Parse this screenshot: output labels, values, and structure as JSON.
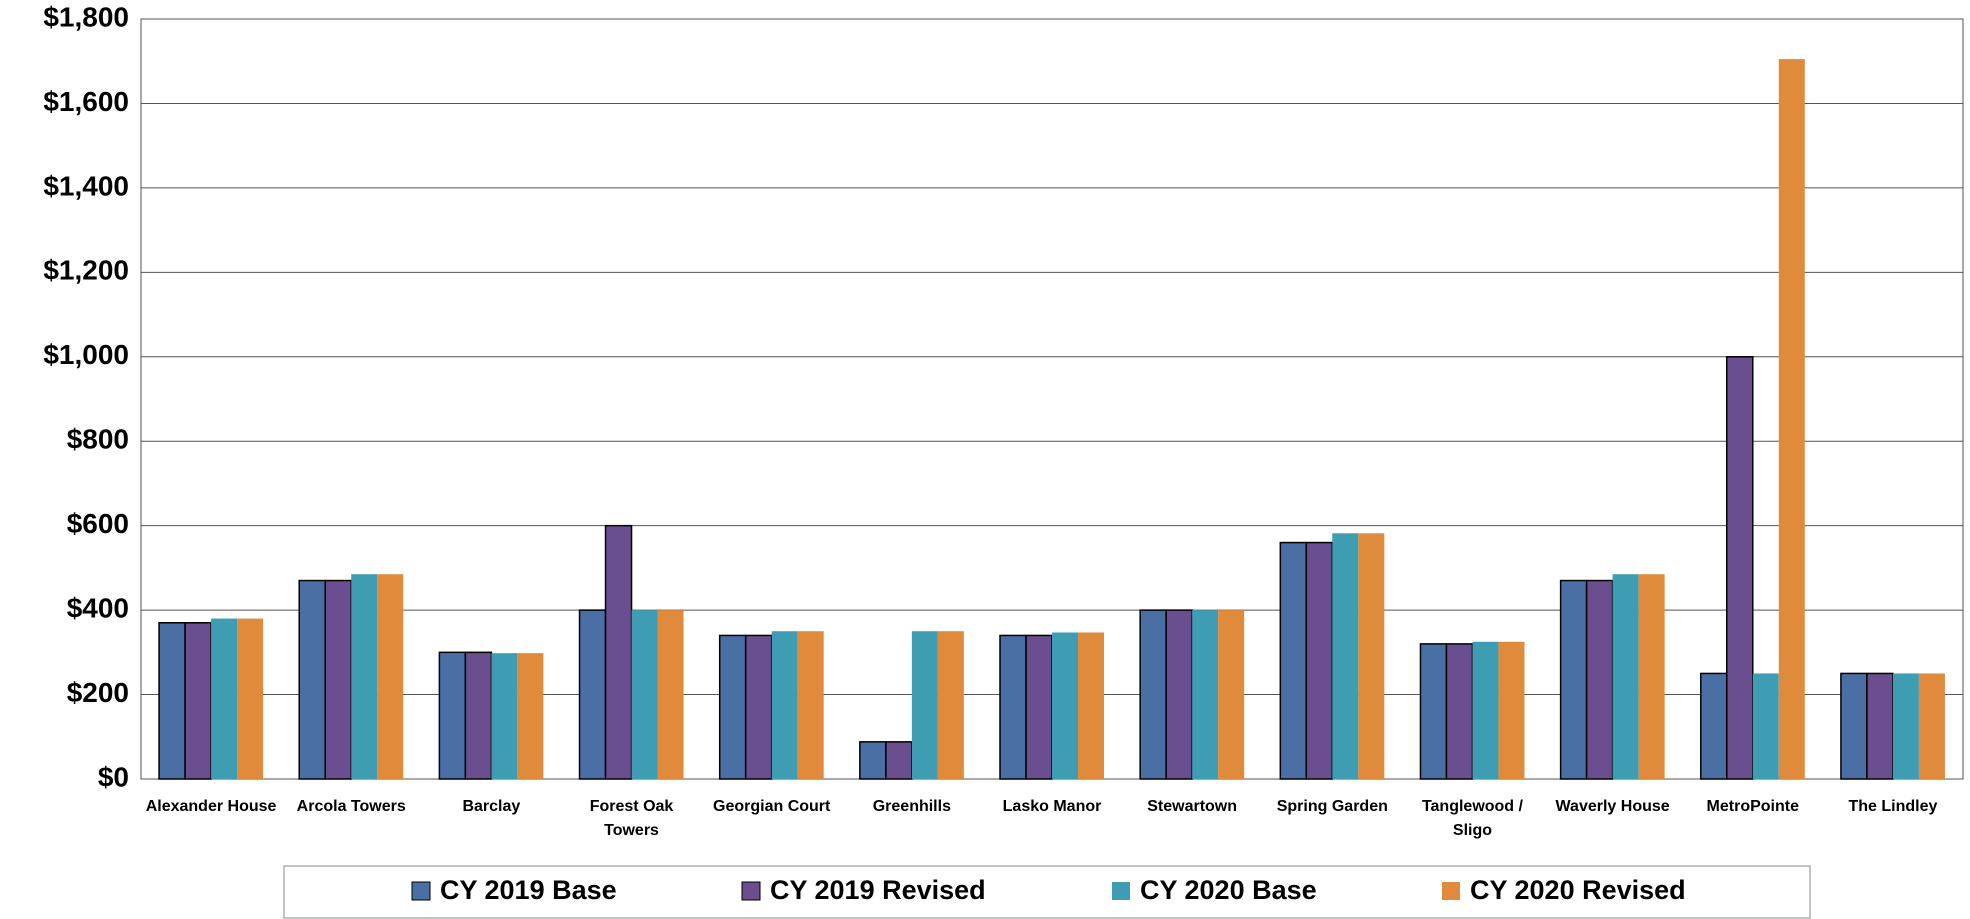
{
  "chart_data": {
    "type": "bar",
    "categories": [
      "Alexander House",
      "Arcola Towers",
      "Barclay",
      "Forest Oak Towers",
      "Georgian Court",
      "Greenhills",
      "Lasko Manor",
      "Stewartown",
      "Spring Garden",
      "Tanglewood / Sligo",
      "Waverly House",
      "MetroPointe",
      "The Lindley"
    ],
    "series": [
      {
        "name": "CY 2019 Base",
        "color": "#4a6fa5",
        "values": [
          370,
          470,
          300,
          400,
          340,
          88,
          340,
          400,
          560,
          320,
          470,
          250,
          250
        ]
      },
      {
        "name": "CY 2019 Revised",
        "color": "#6b4e8f",
        "values": [
          370,
          470,
          300,
          600,
          340,
          88,
          340,
          400,
          560,
          320,
          470,
          1000,
          250
        ]
      },
      {
        "name": "CY 2020 Base",
        "color": "#3e9db3",
        "values": [
          380,
          485,
          298,
          400,
          350,
          350,
          347,
          400,
          582,
          325,
          485,
          250,
          250
        ]
      },
      {
        "name": "CY 2020 Revised",
        "color": "#e08a3c",
        "values": [
          380,
          485,
          298,
          400,
          350,
          350,
          347,
          400,
          582,
          325,
          485,
          1705,
          250
        ]
      }
    ],
    "ylim": [
      0,
      1800
    ],
    "yticks": [
      {
        "value": 0,
        "label": "$0"
      },
      {
        "value": 200,
        "label": "$200"
      },
      {
        "value": 400,
        "label": "$400"
      },
      {
        "value": 600,
        "label": "$600"
      },
      {
        "value": 800,
        "label": "$800"
      },
      {
        "value": 1000,
        "label": "$1,000"
      },
      {
        "value": 1200,
        "label": "$1,200"
      },
      {
        "value": 1400,
        "label": "$1,400"
      },
      {
        "value": 1600,
        "label": "$1,600"
      },
      {
        "value": 1800,
        "label": "$1,800"
      }
    ],
    "grid": true,
    "legend": "bottom"
  }
}
